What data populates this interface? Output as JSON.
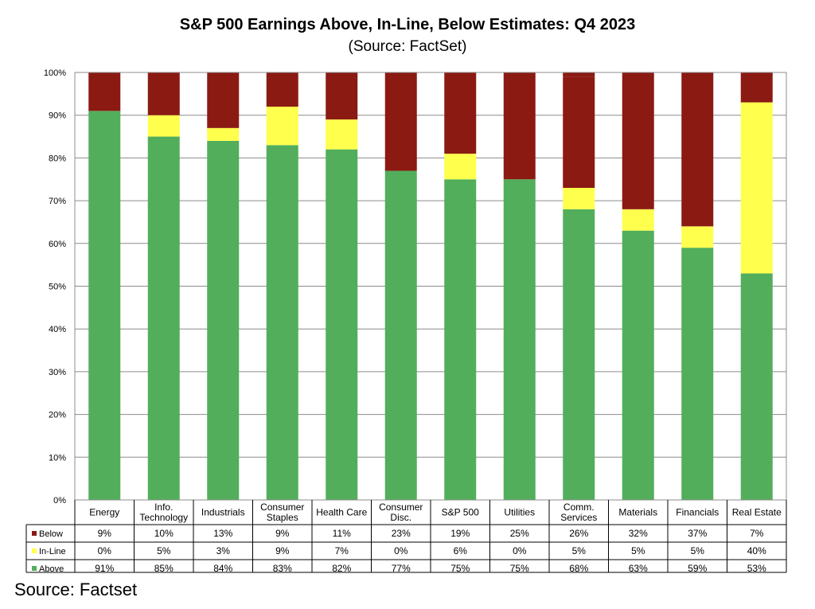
{
  "title": "S&P 500 Earnings Above, In-Line, Below Estimates: Q4 2023",
  "subtitle": "(Source: FactSet)",
  "footer_source": "Source: Factset",
  "chart_data": {
    "type": "bar",
    "stacked": true,
    "categories": [
      [
        "Energy"
      ],
      [
        "Info.",
        "Technology"
      ],
      [
        "Industrials"
      ],
      [
        "Consumer",
        "Staples"
      ],
      [
        "Health Care"
      ],
      [
        "Consumer",
        "Disc."
      ],
      [
        "S&P 500"
      ],
      [
        "Utilities"
      ],
      [
        "Comm.",
        "Services"
      ],
      [
        "Materials"
      ],
      [
        "Financials"
      ],
      [
        "Real Estate"
      ]
    ],
    "series": [
      {
        "name": "Below",
        "color": "#8B1A13",
        "values": [
          9,
          10,
          13,
          9,
          11,
          23,
          19,
          25,
          26,
          32,
          37,
          7
        ],
        "labels": [
          "9%",
          "10%",
          "13%",
          "9%",
          "11%",
          "23%",
          "19%",
          "25%",
          "26%",
          "32%",
          "37%",
          "7%"
        ]
      },
      {
        "name": "In-Line",
        "color": "#FFFF4D",
        "values": [
          0,
          5,
          3,
          9,
          7,
          0,
          6,
          0,
          5,
          5,
          5,
          40
        ],
        "labels": [
          "0%",
          "5%",
          "3%",
          "9%",
          "7%",
          "0%",
          "6%",
          "0%",
          "5%",
          "5%",
          "5%",
          "40%"
        ]
      },
      {
        "name": "Above",
        "color": "#52AE5B",
        "values": [
          91,
          85,
          84,
          83,
          82,
          77,
          75,
          75,
          68,
          63,
          59,
          53
        ],
        "labels": [
          "91%",
          "85%",
          "84%",
          "83%",
          "82%",
          "77%",
          "75%",
          "75%",
          "68%",
          "63%",
          "59%",
          "53%"
        ]
      }
    ],
    "ylim": [
      0,
      100
    ],
    "yticks": [
      "0%",
      "10%",
      "20%",
      "30%",
      "40%",
      "50%",
      "60%",
      "70%",
      "80%",
      "90%",
      "100%"
    ],
    "grid": true,
    "legend": "data-table-below"
  }
}
